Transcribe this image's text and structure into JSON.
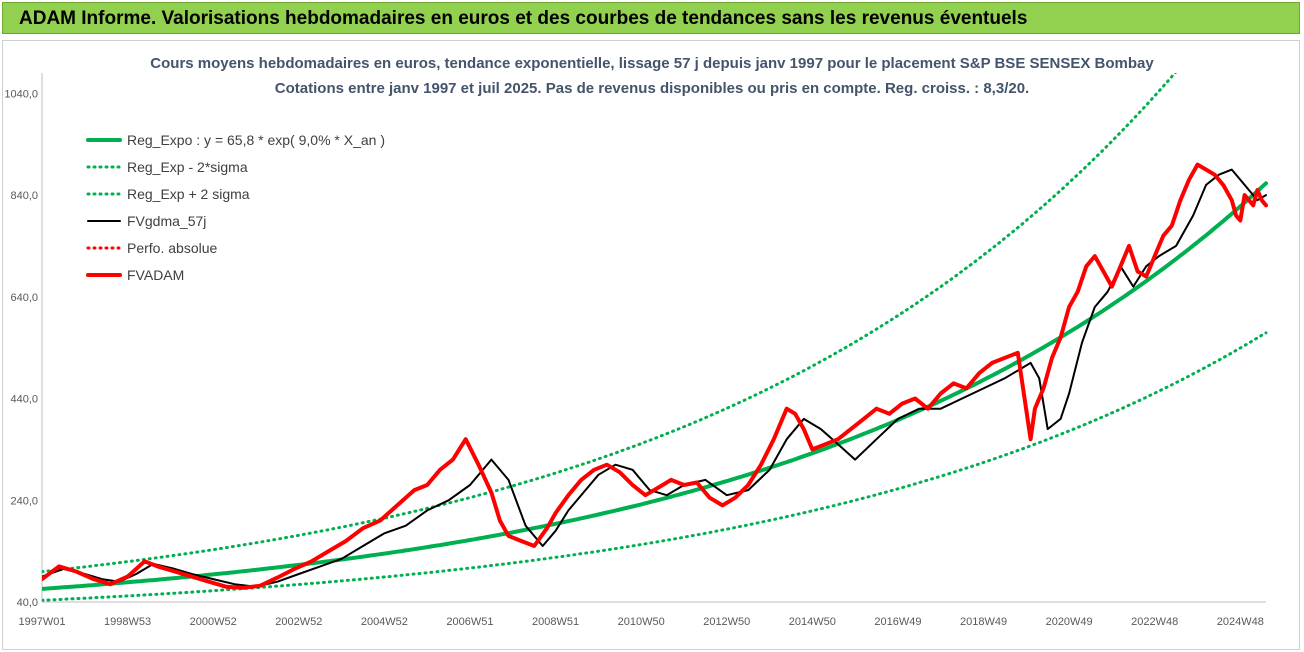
{
  "banner": {
    "title": "ADAM Informe. Valorisations hebdomadaires en euros et des courbes de tendances sans les revenus éventuels"
  },
  "chart_data": {
    "type": "line",
    "title": "Cours moyens hebdomadaires en euros, tendance exponentielle, lissage 57 j depuis janv 1997 pour le placement S&P BSE SENSEX Bombay",
    "subtitle": "Cotations entre janv 1997 et juil 2025. Pas de revenus disponibles ou pris en compte. Reg. croiss. : 8,3/20.",
    "xlabel": "",
    "ylabel": "",
    "ylim": [
      40,
      1080
    ],
    "yticks": [
      40,
      240,
      440,
      640,
      840,
      1040
    ],
    "ytick_labels": [
      "40,0",
      "240,0",
      "440,0",
      "640,0",
      "840,0",
      "1040,0"
    ],
    "xlim": [
      1997.0,
      2025.6
    ],
    "xtick_labels": [
      "1997W01",
      "1998W53",
      "2000W52",
      "2002W52",
      "2004W52",
      "2006W51",
      "2008W51",
      "2010W50",
      "2012W50",
      "2014W50",
      "2016W49",
      "2018W49",
      "2020W49",
      "2022W48",
      "2024W48"
    ],
    "xtick_years": [
      1997.0,
      1999.0,
      2001.0,
      2003.0,
      2005.0,
      2007.0,
      2009.0,
      2011.0,
      2013.0,
      2015.0,
      2017.0,
      2019.0,
      2021.0,
      2023.0,
      2025.0
    ],
    "grid": false,
    "legend": "top-left",
    "series": [
      {
        "name": "Reg_Expo : y = 65,8 * exp( 9,0% *  X_an )",
        "color": "#00b050",
        "style": "solid-thick",
        "model": {
          "a": 65.8,
          "b": 0.09,
          "x0": 1997.0
        }
      },
      {
        "name": "Reg_Exp - 2*sigma",
        "color": "#00b050",
        "style": "dotted",
        "model": {
          "a": 43.4,
          "b": 0.09,
          "x0": 1997.0
        }
      },
      {
        "name": "Reg_Exp + 2 sigma",
        "color": "#00b050",
        "style": "dotted",
        "model": {
          "a": 99.7,
          "b": 0.09,
          "x0": 1997.0,
          "cap": 1095
        }
      },
      {
        "name": "FVgdma_57j",
        "color": "#000000",
        "style": "solid",
        "x": [
          1997.0,
          1997.5,
          1998.0,
          1998.4,
          1998.8,
          1999.2,
          1999.6,
          2000.1,
          2000.5,
          2001.0,
          2001.5,
          2002.0,
          2002.5,
          2003.0,
          2003.5,
          2004.0,
          2004.5,
          2005.0,
          2005.5,
          2006.0,
          2006.5,
          2007.0,
          2007.5,
          2007.9,
          2008.3,
          2008.7,
          2009.0,
          2009.3,
          2009.7,
          2010.0,
          2010.4,
          2010.8,
          2011.2,
          2011.6,
          2012.0,
          2012.5,
          2013.0,
          2013.5,
          2014.0,
          2014.4,
          2014.8,
          2015.2,
          2015.6,
          2016.0,
          2016.5,
          2017.0,
          2017.5,
          2018.0,
          2018.5,
          2019.0,
          2019.5,
          2019.9,
          2020.1,
          2020.3,
          2020.5,
          2020.8,
          2021.0,
          2021.3,
          2021.6,
          2021.9,
          2022.2,
          2022.5,
          2022.8,
          2023.1,
          2023.5,
          2023.9,
          2024.2,
          2024.5,
          2024.8,
          2025.1,
          2025.4,
          2025.6
        ],
        "y": [
          90,
          105,
          95,
          85,
          80,
          95,
          115,
          105,
          95,
          85,
          75,
          70,
          80,
          95,
          110,
          125,
          150,
          175,
          190,
          220,
          240,
          270,
          320,
          280,
          190,
          150,
          180,
          220,
          260,
          290,
          310,
          300,
          260,
          250,
          270,
          280,
          250,
          260,
          300,
          360,
          400,
          380,
          350,
          320,
          360,
          400,
          420,
          420,
          440,
          460,
          480,
          500,
          510,
          480,
          380,
          400,
          450,
          550,
          620,
          650,
          700,
          660,
          700,
          720,
          740,
          800,
          860,
          880,
          890,
          860,
          830,
          840
        ]
      },
      {
        "name": "Perfo. absolue",
        "color": "#ff0000",
        "style": "dotted",
        "x": [],
        "y": []
      },
      {
        "name": "FVADAM",
        "color": "#ff0000",
        "style": "solid-thick",
        "x": [
          1997.0,
          1997.4,
          1997.8,
          1998.2,
          1998.6,
          1999.0,
          1999.4,
          1999.7,
          2000.1,
          2000.5,
          2000.9,
          2001.3,
          2001.7,
          2002.1,
          2002.5,
          2002.9,
          2003.3,
          2003.7,
          2004.1,
          2004.5,
          2004.9,
          2005.3,
          2005.7,
          2006.0,
          2006.3,
          2006.6,
          2006.9,
          2007.2,
          2007.5,
          2007.7,
          2007.9,
          2008.2,
          2008.5,
          2008.8,
          2009.0,
          2009.3,
          2009.6,
          2009.9,
          2010.2,
          2010.5,
          2010.8,
          2011.1,
          2011.4,
          2011.7,
          2012.0,
          2012.3,
          2012.6,
          2012.9,
          2013.2,
          2013.5,
          2013.8,
          2014.1,
          2014.4,
          2014.6,
          2014.8,
          2015.0,
          2015.3,
          2015.6,
          2015.9,
          2016.2,
          2016.5,
          2016.8,
          2017.1,
          2017.4,
          2017.7,
          2018.0,
          2018.3,
          2018.6,
          2018.9,
          2019.2,
          2019.5,
          2019.8,
          2020.1,
          2020.2,
          2020.4,
          2020.6,
          2020.8,
          2021.0,
          2021.2,
          2021.4,
          2021.6,
          2021.8,
          2022.0,
          2022.2,
          2022.4,
          2022.6,
          2022.8,
          2023.0,
          2023.2,
          2023.4,
          2023.6,
          2023.8,
          2024.0,
          2024.2,
          2024.4,
          2024.6,
          2024.8,
          2024.9,
          2025.0,
          2025.1,
          2025.2,
          2025.3,
          2025.4,
          2025.5,
          2025.6
        ],
        "y": [
          85,
          110,
          100,
          85,
          75,
          90,
          120,
          110,
          100,
          90,
          80,
          70,
          68,
          72,
          88,
          105,
          120,
          140,
          160,
          185,
          200,
          230,
          260,
          270,
          300,
          320,
          360,
          310,
          255,
          200,
          170,
          160,
          150,
          185,
          215,
          250,
          280,
          300,
          310,
          295,
          270,
          250,
          265,
          280,
          270,
          275,
          245,
          230,
          245,
          270,
          310,
          360,
          420,
          410,
          380,
          340,
          350,
          360,
          380,
          400,
          420,
          410,
          430,
          440,
          420,
          450,
          470,
          460,
          490,
          510,
          520,
          530,
          360,
          420,
          460,
          520,
          560,
          620,
          650,
          700,
          720,
          690,
          660,
          700,
          740,
          690,
          680,
          720,
          760,
          780,
          830,
          870,
          900,
          890,
          880,
          860,
          830,
          800,
          790,
          840,
          830,
          820,
          850,
          830,
          820
        ]
      }
    ]
  }
}
